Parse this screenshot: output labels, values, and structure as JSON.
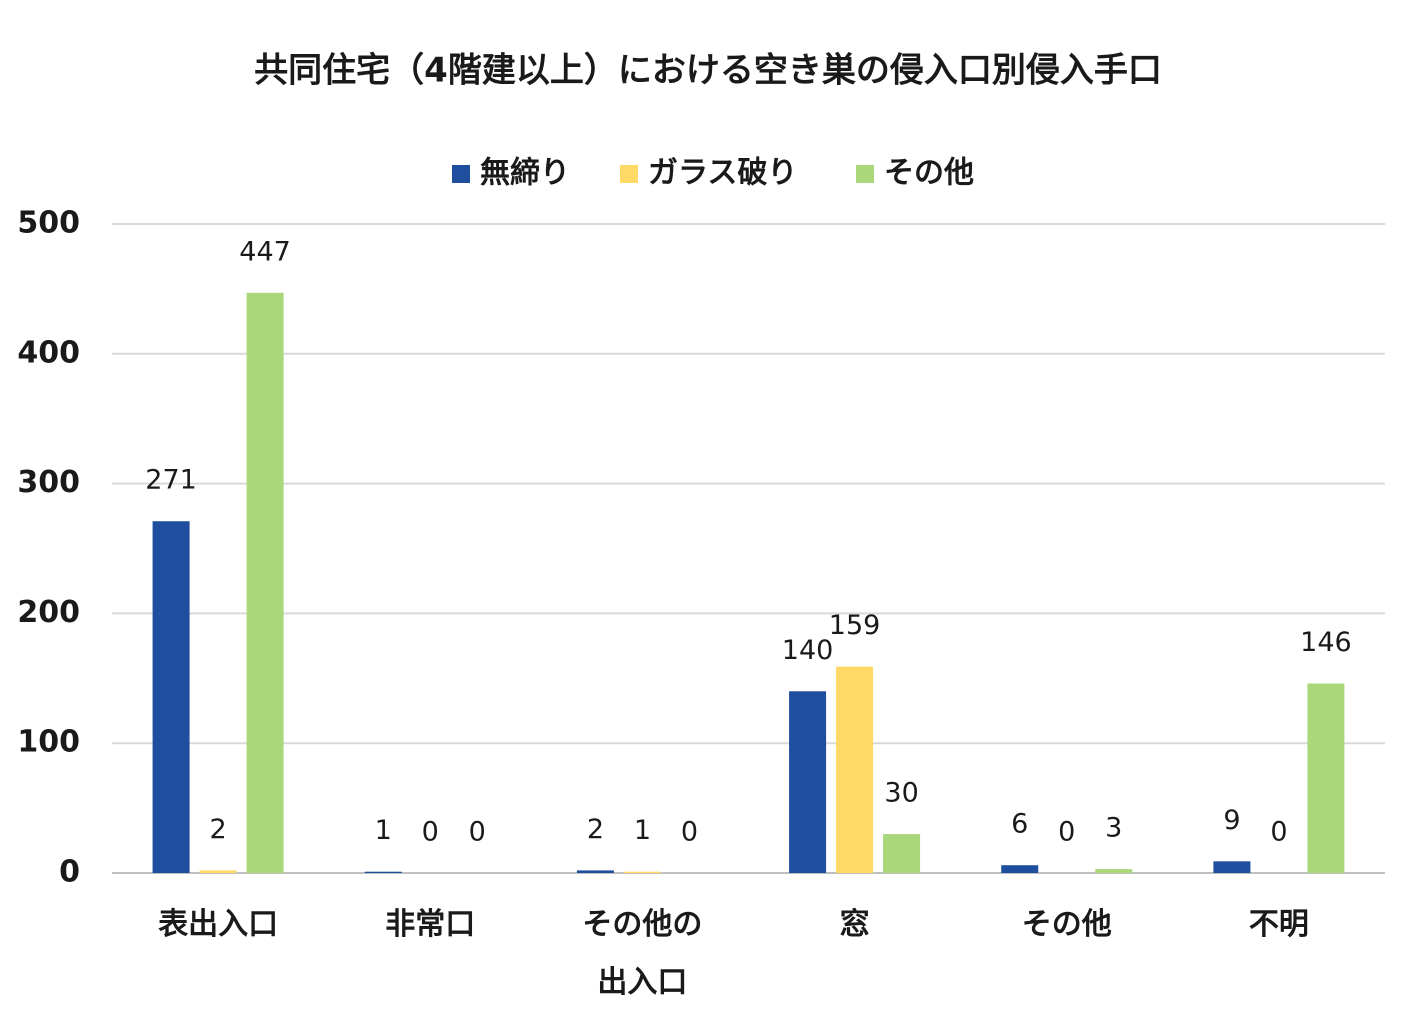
{
  "chart_data": {
    "type": "bar",
    "title": "共同住宅（4階建以上）における空き巣の侵入口別侵入手口",
    "categories": [
      "表出入口",
      "非常口",
      "その他の出入口",
      "窓",
      "その他",
      "不明"
    ],
    "series": [
      {
        "name": "無締り",
        "color": "#1f4e9e",
        "values": [
          271,
          1,
          2,
          140,
          6,
          9
        ]
      },
      {
        "name": "ガラス破り",
        "color": "#ffd966",
        "values": [
          2,
          0,
          1,
          159,
          0,
          0
        ]
      },
      {
        "name": "その他",
        "color": "#a9d77a",
        "values": [
          447,
          0,
          0,
          30,
          3,
          146
        ]
      }
    ],
    "ylim": [
      0,
      500
    ],
    "yticks": [
      0,
      100,
      200,
      300,
      400,
      500
    ],
    "grid": true,
    "legend": "top"
  }
}
